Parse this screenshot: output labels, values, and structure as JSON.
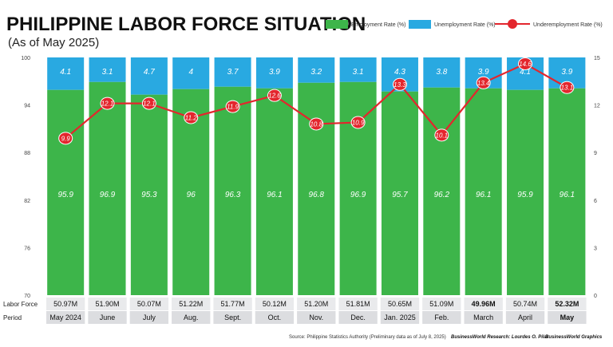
{
  "chart_data": {
    "type": "bar",
    "title": "PHILIPPINE LABOR FORCE SITUATION",
    "subtitle": "(As of May 2025)",
    "categories": [
      "May 2024",
      "June",
      "July",
      "Aug.",
      "Sept.",
      "Oct.",
      "Nov.",
      "Dec.",
      "Jan. 2025",
      "Feb.",
      "March",
      "April",
      "May"
    ],
    "series": [
      {
        "name": "Employment  Rate (%)",
        "values": [
          95.9,
          96.9,
          95.3,
          96.0,
          96.3,
          96.1,
          96.8,
          96.9,
          95.7,
          96.2,
          96.1,
          95.9,
          96.1
        ],
        "color": "#3db54a"
      },
      {
        "name": "Unemployment Rate (%)",
        "values": [
          4.1,
          3.1,
          4.7,
          4.0,
          3.7,
          3.9,
          3.2,
          3.1,
          4.3,
          3.8,
          3.9,
          4.1,
          3.9
        ],
        "color": "#29a9e1"
      },
      {
        "name": "Underemployment Rate (%)",
        "values": [
          9.9,
          12.1,
          12.1,
          11.2,
          11.9,
          12.6,
          10.8,
          10.9,
          13.3,
          10.1,
          13.4,
          14.6,
          13.1
        ],
        "color": "#e3262d"
      }
    ],
    "left_axis": {
      "min": 70,
      "max": 100,
      "ticks": [
        "70",
        "76",
        "82",
        "88",
        "94",
        "100"
      ]
    },
    "right_axis": {
      "min": 0,
      "max": 15,
      "ticks": [
        "0",
        "3",
        "6",
        "9",
        "12",
        "15"
      ]
    },
    "labor_force": [
      "50.97M",
      "51.90M",
      "50.07M",
      "51.22M",
      "51.77M",
      "50.12M",
      "51.20M",
      "51.81M",
      "50.65M",
      "51.09M",
      "49.96M",
      "50.74M",
      "52.32M"
    ],
    "row_labels": {
      "labor_force": "Labor Force",
      "period": "Period"
    },
    "edge_labels": {
      "unemployment": "4.0",
      "employment": "96.0"
    },
    "footer": {
      "source": "Source: Philippine Statistics Authority (Preliminary data as of July 8, 2025)",
      "research": "BusinessWorld Research: Lourdes O. Pilar",
      "graphics": "BusinessWorld Graphics"
    }
  }
}
